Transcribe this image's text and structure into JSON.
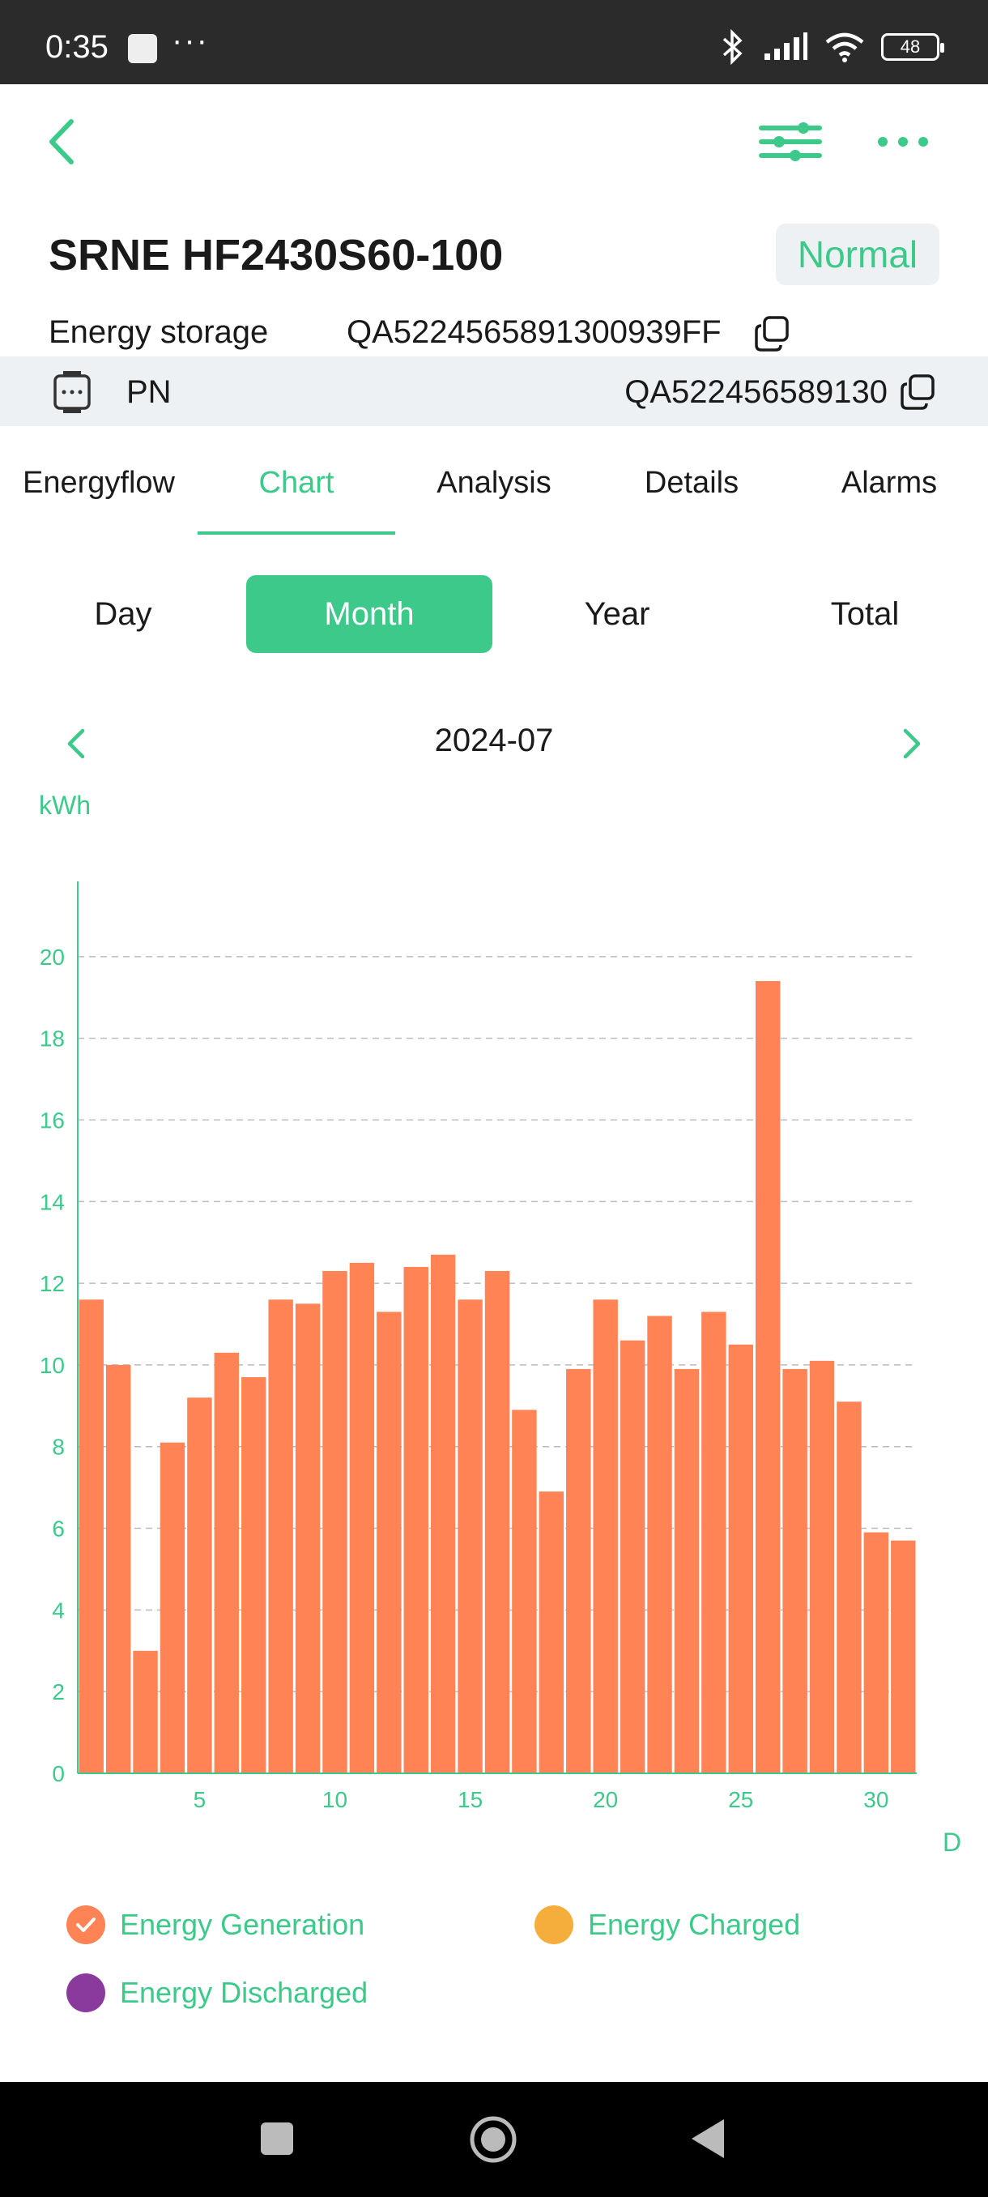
{
  "status_bar": {
    "time": "0:35",
    "dots": "···",
    "battery": "48"
  },
  "header": {
    "title": "SRNE HF2430S60-100",
    "status": "Normal"
  },
  "storage": {
    "label": "Energy storage",
    "value": "QA5224565891300939FF"
  },
  "pn": {
    "label": "PN",
    "value": "QA522456589130"
  },
  "tabs": [
    "Energyflow",
    "Chart",
    "Analysis",
    "Details",
    "Alarms"
  ],
  "active_tab": "Chart",
  "periods": [
    "Day",
    "Month",
    "Year",
    "Total"
  ],
  "active_period": "Month",
  "date": "2024-07",
  "colors": {
    "accent": "#3cc98a",
    "bar": "#ff8355",
    "charged": "#f5ad3c",
    "discharged": "#8a3a9c"
  },
  "chart_data": {
    "type": "bar",
    "ylabel": "kWh",
    "xlabel": "D",
    "ylim": [
      0,
      22
    ],
    "yticks": [
      0,
      2,
      4,
      6,
      8,
      10,
      12,
      14,
      16,
      18,
      20
    ],
    "xticks": [
      5,
      10,
      15,
      20,
      25,
      30
    ],
    "grid": true,
    "x": [
      1,
      2,
      3,
      4,
      5,
      6,
      7,
      8,
      9,
      10,
      11,
      12,
      13,
      14,
      15,
      16,
      17,
      18,
      19,
      20,
      21,
      22,
      23,
      24,
      25,
      26,
      27,
      28,
      29,
      30,
      31
    ],
    "series": [
      {
        "name": "Energy Generation",
        "values": [
          11.6,
          10.0,
          3.0,
          8.1,
          9.2,
          10.3,
          9.7,
          11.6,
          11.5,
          12.3,
          12.5,
          11.3,
          12.4,
          12.7,
          11.6,
          12.3,
          8.9,
          6.9,
          9.9,
          11.6,
          10.6,
          11.2,
          9.9,
          11.3,
          10.5,
          19.4,
          9.9,
          10.1,
          9.1,
          5.9,
          5.7
        ]
      }
    ],
    "legend": [
      "Energy Generation",
      "Energy Charged",
      "Energy Discharged"
    ]
  }
}
